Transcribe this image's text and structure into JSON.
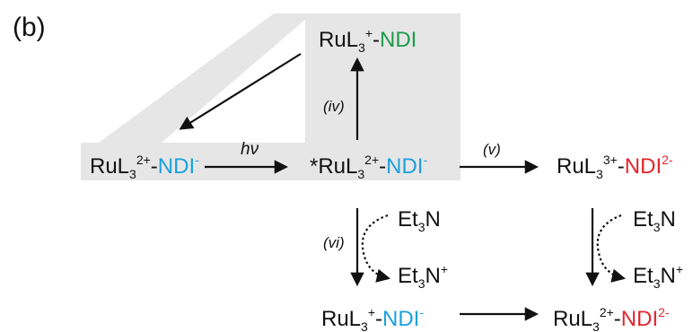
{
  "colors": {
    "blue": "#1ba1dc",
    "green": "#1e9a4b",
    "red": "#e0262e",
    "shade": "#e6e6e6",
    "ink": "#111111"
  },
  "panel_label": "(b)",
  "species": {
    "ru_plus_ndi": {
      "ru": "RuL",
      "sub": "3",
      "sup": "+",
      "sep": "-",
      "ndi": "NDI",
      "ndi_sup": ""
    },
    "ru2_ndi_minus": {
      "ru": "RuL",
      "sub": "3",
      "sup": "2+",
      "sep": "-",
      "ndi": "NDI",
      "ndi_sup": "-"
    },
    "excited": {
      "ru": "*RuL",
      "sub": "3",
      "sup": "2+",
      "sep": "-",
      "ndi": "NDI",
      "ndi_sup": "-"
    },
    "ru3_ndi2": {
      "ru": "RuL",
      "sub": "3",
      "sup": "3+",
      "sep": "-",
      "ndi": "NDI",
      "ndi_sup": "2-"
    },
    "ru_plus_ndi_minus": {
      "ru": "RuL",
      "sub": "3",
      "sup": "+",
      "sep": "-",
      "ndi": "NDI",
      "ndi_sup": "-"
    },
    "ru2_ndi2": {
      "ru": "RuL",
      "sub": "3",
      "sup": "2+",
      "sep": "-",
      "ndi": "NDI",
      "ndi_sup": "2-"
    }
  },
  "steps": {
    "iv": "(iv)",
    "v": "(v)",
    "vi": "(vi)",
    "hv": "hν"
  },
  "donors": {
    "left": {
      "et3n": {
        "base": "Et",
        "sub": "3",
        "tail": "N"
      },
      "et3n_plus": {
        "base": "Et",
        "sub": "3",
        "tail": "N",
        "sup": "+"
      }
    },
    "right": {
      "et3n": {
        "base": "Et",
        "sub": "3",
        "tail": "N"
      },
      "et3n_plus": {
        "base": "Et",
        "sub": "3",
        "tail": "N",
        "sup": "+"
      }
    }
  }
}
